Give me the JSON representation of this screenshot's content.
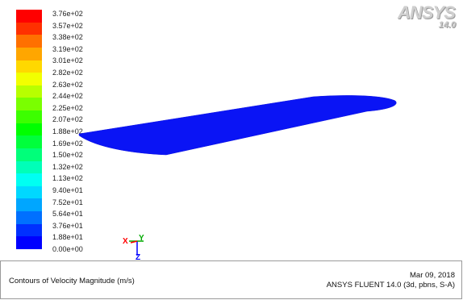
{
  "logo": {
    "brand": "ANSYS",
    "version": "14.0"
  },
  "colorbar": {
    "colors": [
      "#0000ff",
      "#0030ff",
      "#0070ff",
      "#00a6ff",
      "#00d8ff",
      "#00fff2",
      "#00ffb8",
      "#00ff7a",
      "#00ff3c",
      "#00ff00",
      "#3cff00",
      "#7aff00",
      "#b8ff00",
      "#f2ff00",
      "#ffd800",
      "#ffa600",
      "#ff7000",
      "#ff3000",
      "#ff0000"
    ],
    "labels": [
      "3.76e+02",
      "3.57e+02",
      "3.38e+02",
      "3.19e+02",
      "3.01e+02",
      "2.82e+02",
      "2.63e+02",
      "2.44e+02",
      "2.25e+02",
      "2.07e+02",
      "1.88e+02",
      "1.69e+02",
      "1.50e+02",
      "1.32e+02",
      "1.13e+02",
      "9.40e+01",
      "7.52e+01",
      "5.64e+01",
      "3.76e+01",
      "1.88e+01",
      "0.00e+00"
    ]
  },
  "wing": {
    "color": "#0a14f5"
  },
  "axes": {
    "x": "X",
    "y": "Y",
    "z": "Z"
  },
  "caption": {
    "title": "Contours of Velocity Magnitude (m/s)",
    "date": "Mar 09, 2018",
    "solver": "ANSYS FLUENT 14.0 (3d, pbns, S-A)"
  }
}
